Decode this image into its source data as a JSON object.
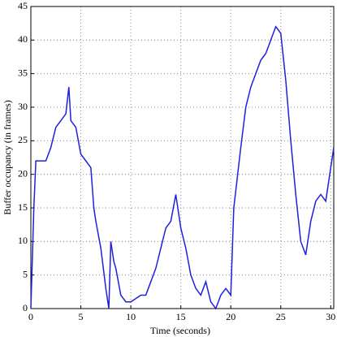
{
  "chart_data": {
    "type": "line",
    "xlabel": "Time (seconds)",
    "ylabel": "Buffer occupancy (in frames)",
    "x": [
      0,
      0.3,
      0.5,
      1,
      1.5,
      2,
      2.5,
      3,
      3.5,
      3.8,
      4,
      4.5,
      5,
      5.5,
      6,
      6.3,
      6.5,
      7,
      7.5,
      7.8,
      8,
      8.3,
      8.5,
      9,
      9.5,
      10,
      11,
      11.5,
      12,
      12.5,
      13,
      13.5,
      14,
      14.5,
      15,
      15.5,
      16,
      16.5,
      17,
      17.5,
      18,
      18.5,
      19,
      19.5,
      20,
      20.3,
      21,
      21.5,
      22,
      22.5,
      23,
      23.5,
      24,
      24.5,
      25,
      25.5,
      26,
      26.5,
      27,
      27.5,
      28,
      28.5,
      29,
      29.5,
      30,
      30.3
    ],
    "series": [
      {
        "name": "Buffer occupancy",
        "color": "#1f1fe0",
        "values": [
          0,
          15,
          22,
          22,
          22,
          24,
          27,
          28,
          29,
          33,
          28,
          27,
          23,
          22,
          21,
          15,
          13,
          9,
          3,
          0,
          10,
          7,
          6,
          2,
          1,
          1,
          2,
          2,
          4,
          6,
          9,
          12,
          13,
          17,
          12,
          9,
          5,
          3,
          2,
          4,
          1,
          0,
          2,
          3,
          2,
          15,
          24,
          30,
          33,
          35,
          37,
          38,
          40,
          42,
          41,
          34,
          25,
          17,
          10,
          8,
          13,
          16,
          17,
          16,
          21,
          24
        ]
      }
    ],
    "xlim": [
      0,
      30.3
    ],
    "ylim": [
      0,
      45
    ],
    "xticks": [
      0,
      5,
      10,
      15,
      20,
      25,
      30
    ],
    "yticks": [
      0,
      5,
      10,
      15,
      20,
      25,
      30,
      35,
      40,
      45
    ],
    "grid": true
  }
}
